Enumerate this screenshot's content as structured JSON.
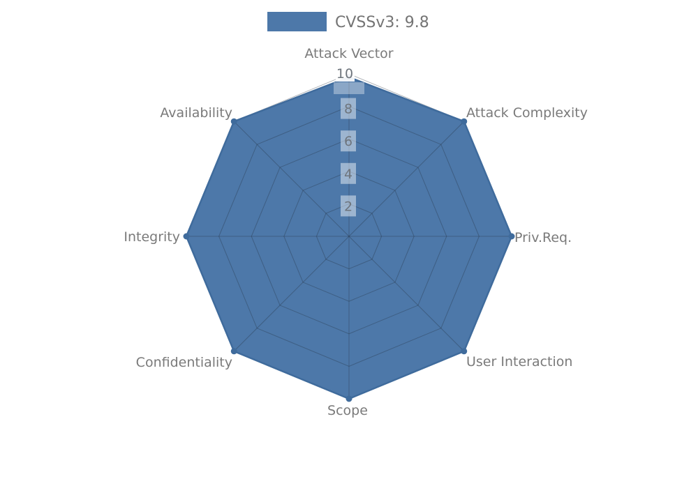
{
  "legend": {
    "label": "CVSSv3: 9.8",
    "swatch_color": "#4D78A9"
  },
  "chart_data": {
    "type": "radar",
    "title": "CVSSv3: 9.8",
    "categories": [
      "Attack Vector",
      "Attack Complexity",
      "Priv.Req.",
      "User Interaction",
      "Scope",
      "Confidentiality",
      "Integrity",
      "Availability"
    ],
    "series": [
      {
        "name": "CVSSv3: 9.8",
        "values": [
          9.8,
          10,
          10,
          10,
          10,
          10,
          10,
          10
        ]
      }
    ],
    "rmin": 0,
    "rmax": 10,
    "tick_values": [
      2,
      4,
      6,
      8,
      10
    ],
    "tick_labels": [
      "2",
      "4",
      "6",
      "8",
      "10"
    ],
    "grid": true,
    "legend_position": "top-center",
    "colors": {
      "fill": "#4D78A9",
      "border": "#3F6B9C",
      "grid": "rgba(35,45,60,0.35)",
      "axis_label": "#7A7A7A",
      "tick_text": "#6E757D",
      "tick_backdrop": "rgba(255,255,255,0.45)",
      "tick_backdrop_top": "rgba(255,255,255,0.92)",
      "legend_text": "#747474"
    }
  }
}
